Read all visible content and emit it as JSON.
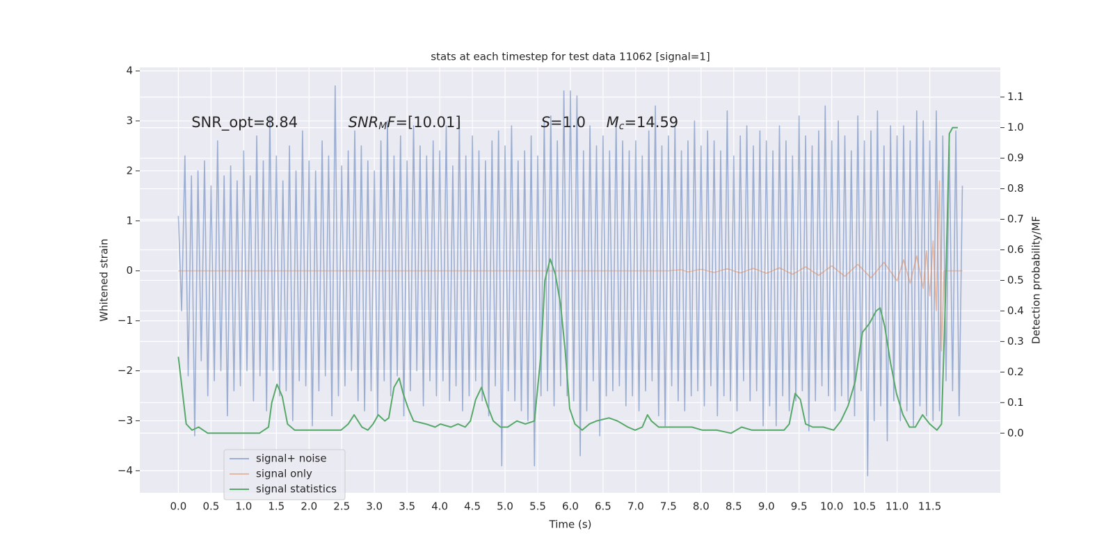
{
  "chart_data": {
    "type": "line",
    "title": "stats at each timestep for test data 11062 [signal=1]",
    "xlabel": "Time (s)",
    "ylabel": "Whitened strain",
    "y2label": "Detection probability/MF",
    "annotations": [
      {
        "parts": [
          {
            "text": "SNR_opt=8.84"
          }
        ]
      },
      {
        "parts": [
          {
            "text": "SNR",
            "style": "italic"
          },
          {
            "text": "M",
            "style": "sub"
          },
          {
            "text": "F",
            "style": "italic"
          },
          {
            "text": "=[10.01]"
          }
        ]
      },
      {
        "parts": [
          {
            "text": "S",
            "style": "italic"
          },
          {
            "text": "=1.0"
          }
        ]
      },
      {
        "parts": [
          {
            "text": "M",
            "style": "italic"
          },
          {
            "text": "c",
            "style": "sub"
          },
          {
            "text": "=14.59"
          }
        ]
      }
    ],
    "xlim": [
      -0.59,
      12.58
    ],
    "ylim": [
      -4.44,
      4.07
    ],
    "y2lim": [
      -0.195,
      1.197
    ],
    "xticks": [
      {
        "value": 0,
        "label": "0.0"
      },
      0.5,
      {
        "value": 1,
        "label": "1.0"
      },
      1.5,
      {
        "value": 2,
        "label": "2.0"
      },
      2.5,
      {
        "value": 3,
        "label": "3.0"
      },
      3.5,
      {
        "value": 4,
        "label": "4.0"
      },
      4.5,
      {
        "value": 5,
        "label": "5.0"
      },
      5.5,
      {
        "value": 6,
        "label": "6.0"
      },
      6.5,
      {
        "value": 7,
        "label": "7.0"
      },
      7.5,
      {
        "value": 8,
        "label": "8.0"
      },
      8.5,
      {
        "value": 9,
        "label": "9.0"
      },
      9.5,
      {
        "value": 10,
        "label": "10.0"
      },
      10.5,
      {
        "value": 11,
        "label": "11.0"
      },
      11.5
    ],
    "yticks": [
      {
        "value": -4,
        "label": "−4"
      },
      {
        "value": -3,
        "label": "−3"
      },
      {
        "value": -2,
        "label": "−2"
      },
      {
        "value": -1,
        "label": "−1"
      },
      0,
      1,
      2,
      3,
      4
    ],
    "y2ticks": [
      {
        "value": 0,
        "label": "0.0"
      },
      0.1,
      0.2,
      0.3,
      0.4,
      0.5,
      0.6,
      0.7,
      0.8,
      0.9,
      {
        "value": 1,
        "label": "1.0"
      },
      1.1
    ],
    "grid": true,
    "legend": "lower left",
    "series": [
      {
        "name": "signal+ noise",
        "color": "#4c72b0",
        "opacity": 0.5,
        "x": [
          0,
          0.05,
          0.1,
          0.15,
          0.2,
          0.25,
          0.3,
          0.35,
          0.4,
          0.45,
          0.5,
          0.55,
          0.6,
          0.65,
          0.7,
          0.75,
          0.8,
          0.85,
          0.9,
          0.95,
          1,
          1.05,
          1.1,
          1.15,
          1.2,
          1.25,
          1.3,
          1.35,
          1.4,
          1.45,
          1.5,
          1.55,
          1.6,
          1.65,
          1.7,
          1.75,
          1.8,
          1.85,
          1.9,
          1.95,
          2,
          2.05,
          2.1,
          2.15,
          2.2,
          2.25,
          2.3,
          2.35,
          2.4,
          2.45,
          2.5,
          2.55,
          2.6,
          2.65,
          2.7,
          2.75,
          2.8,
          2.85,
          2.9,
          2.95,
          3,
          3.05,
          3.1,
          3.15,
          3.2,
          3.25,
          3.3,
          3.35,
          3.4,
          3.45,
          3.5,
          3.55,
          3.6,
          3.65,
          3.7,
          3.75,
          3.8,
          3.85,
          3.9,
          3.95,
          4,
          4.05,
          4.1,
          4.15,
          4.2,
          4.25,
          4.3,
          4.35,
          4.4,
          4.45,
          4.5,
          4.55,
          4.6,
          4.65,
          4.7,
          4.75,
          4.8,
          4.85,
          4.9,
          4.95,
          5,
          5.05,
          5.1,
          5.15,
          5.2,
          5.25,
          5.3,
          5.35,
          5.4,
          5.45,
          5.5,
          5.55,
          5.6,
          5.65,
          5.7,
          5.75,
          5.8,
          5.85,
          5.9,
          5.95,
          6,
          6.05,
          6.1,
          6.15,
          6.2,
          6.25,
          6.3,
          6.35,
          6.4,
          6.45,
          6.5,
          6.55,
          6.6,
          6.65,
          6.7,
          6.75,
          6.8,
          6.85,
          6.9,
          6.95,
          7,
          7.05,
          7.1,
          7.15,
          7.2,
          7.25,
          7.3,
          7.35,
          7.4,
          7.45,
          7.5,
          7.55,
          7.6,
          7.65,
          7.7,
          7.75,
          7.8,
          7.85,
          7.9,
          7.95,
          8,
          8.05,
          8.1,
          8.15,
          8.2,
          8.25,
          8.3,
          8.35,
          8.4,
          8.45,
          8.5,
          8.55,
          8.6,
          8.65,
          8.7,
          8.75,
          8.8,
          8.85,
          8.9,
          8.95,
          9,
          9.05,
          9.1,
          9.15,
          9.2,
          9.25,
          9.3,
          9.35,
          9.4,
          9.45,
          9.5,
          9.55,
          9.6,
          9.65,
          9.7,
          9.75,
          9.8,
          9.85,
          9.9,
          9.95,
          10,
          10.05,
          10.1,
          10.15,
          10.2,
          10.25,
          10.3,
          10.35,
          10.4,
          10.45,
          10.5,
          10.55,
          10.6,
          10.65,
          10.7,
          10.75,
          10.8,
          10.85,
          10.9,
          10.95,
          11,
          11.05,
          11.1,
          11.15,
          11.2,
          11.25,
          11.3,
          11.35,
          11.4,
          11.45,
          11.5,
          11.55,
          11.6,
          11.65,
          11.7,
          11.75,
          11.8,
          11.85,
          11.9,
          11.95,
          12
        ],
        "values": [
          1.1,
          -0.8,
          2.3,
          -2.1,
          1.9,
          -3.3,
          2.0,
          -1.8,
          2.2,
          -2.5,
          1.7,
          -2.2,
          2.6,
          -2.0,
          1.9,
          -2.9,
          2.1,
          -2.4,
          1.8,
          -2.3,
          2.4,
          -2.0,
          1.9,
          -2.6,
          2.7,
          -2.1,
          2.2,
          -2.8,
          3.1,
          -2.0,
          2.3,
          -2.5,
          1.8,
          -2.4,
          2.5,
          -3.0,
          2.0,
          -2.2,
          2.8,
          -2.3,
          2.2,
          -3.1,
          2.0,
          -2.4,
          2.6,
          -2.1,
          2.3,
          -2.9,
          3.7,
          -2.5,
          2.1,
          -2.3,
          2.4,
          -2.0,
          2.8,
          -2.6,
          2.5,
          -2.8,
          2.2,
          -2.4,
          2.0,
          -2.9,
          2.6,
          -2.2,
          3.0,
          -2.5,
          2.3,
          -2.1,
          2.7,
          -2.9,
          2.2,
          -2.4,
          2.9,
          -2.0,
          2.5,
          -2.7,
          2.3,
          -2.2,
          2.6,
          -2.5,
          2.4,
          -2.2,
          2.9,
          -2.6,
          2.1,
          -2.3,
          3.0,
          -2.8,
          2.3,
          -2.5,
          2.7,
          -2.2,
          2.4,
          -2.6,
          2.2,
          -2.9,
          2.6,
          -2.3,
          2.8,
          -3.9,
          2.5,
          -2.4,
          2.9,
          -2.6,
          2.2,
          -2.8,
          2.4,
          -3.0,
          2.7,
          -3.9,
          2.3,
          -2.5,
          3.0,
          -2.4,
          3.1,
          -2.7,
          2.6,
          -2.3,
          3.6,
          -2.5,
          3.6,
          -2.6,
          3.5,
          -3.7,
          2.4,
          -2.8,
          2.9,
          -2.2,
          2.5,
          -3.3,
          2.7,
          -2.5,
          2.4,
          -2.4,
          3.0,
          -2.3,
          2.6,
          -2.7,
          2.4,
          -2.5,
          2.6,
          -2.8,
          2.3,
          -2.4,
          2.8,
          -2.2,
          3.3,
          -2.9,
          2.5,
          -3.1,
          2.7,
          -2.3,
          2.9,
          -2.6,
          2.4,
          -2.8,
          2.6,
          -2.5,
          3.0,
          -2.4,
          2.5,
          -2.7,
          2.8,
          -2.3,
          2.6,
          -2.9,
          2.4,
          -2.5,
          3.2,
          -2.6,
          2.3,
          -2.8,
          2.7,
          -2.2,
          2.9,
          -2.6,
          2.5,
          -2.4,
          2.8,
          -3.1,
          2.6,
          -2.7,
          2.4,
          -3.1,
          2.9,
          -2.5,
          2.6,
          -2.8,
          2.3,
          -2.6,
          3.1,
          -2.4,
          2.7,
          -3.2,
          2.5,
          -2.6,
          2.8,
          -2.3,
          3.3,
          -2.5,
          2.6,
          -2.8,
          3.0,
          -2.5,
          2.7,
          -2.6,
          2.4,
          -2.9,
          3.1,
          -2.4,
          2.6,
          -4.1,
          2.8,
          -3.0,
          3.2,
          -2.7,
          2.5,
          -3.4,
          2.9,
          -2.6,
          2.7,
          -3.0,
          2.9,
          -2.8,
          2.6,
          -3.1,
          3.2,
          -2.7,
          3.0,
          -2.9,
          2.6,
          -3.0,
          3.2,
          -2.8,
          2.7,
          -2.2,
          2.5,
          -2.4,
          2.8,
          -2.9,
          1.7
        ]
      },
      {
        "name": "signal only",
        "color": "#dd8452",
        "opacity": 0.5,
        "x": [
          0,
          7.5,
          7.7,
          7.8,
          8.0,
          8.2,
          8.4,
          8.6,
          8.8,
          9.0,
          9.2,
          9.4,
          9.6,
          9.8,
          10.0,
          10.2,
          10.4,
          10.6,
          10.8,
          11.0,
          11.1,
          11.2,
          11.3,
          11.4,
          11.45,
          11.5,
          11.55,
          11.6,
          11.63,
          11.65,
          11.68,
          11.72,
          12.0
        ],
        "values": [
          0,
          0,
          0.02,
          -0.02,
          0.03,
          -0.03,
          0.04,
          -0.04,
          0.05,
          -0.05,
          0.06,
          -0.07,
          0.08,
          -0.09,
          0.1,
          -0.11,
          0.13,
          -0.14,
          0.17,
          -0.2,
          0.22,
          -0.25,
          0.3,
          -0.35,
          0.4,
          -0.5,
          0.6,
          -0.8,
          1.0,
          1.8,
          -1.6,
          0,
          0
        ]
      },
      {
        "name": "signal statistics",
        "color": "#55a868",
        "opacity": 1,
        "axis": "y2",
        "x": [
          0,
          0.12,
          0.21,
          0.31,
          0.45,
          0.64,
          0.86,
          1.02,
          1.24,
          1.38,
          1.43,
          1.51,
          1.59,
          1.67,
          1.78,
          2.0,
          2.27,
          2.49,
          2.6,
          2.69,
          2.81,
          2.9,
          2.98,
          3.06,
          3.16,
          3.22,
          3.3,
          3.38,
          3.44,
          3.52,
          3.6,
          3.79,
          3.93,
          4.01,
          4.17,
          4.28,
          4.39,
          4.47,
          4.55,
          4.64,
          4.73,
          4.82,
          4.93,
          5.04,
          5.18,
          5.31,
          5.45,
          5.55,
          5.61,
          5.69,
          5.77,
          5.85,
          5.92,
          5.99,
          6.07,
          6.18,
          6.29,
          6.4,
          6.59,
          6.72,
          6.88,
          6.99,
          7.1,
          7.18,
          7.24,
          7.35,
          7.54,
          7.7,
          7.86,
          8.02,
          8.24,
          8.46,
          8.62,
          8.78,
          9.11,
          9.27,
          9.35,
          9.44,
          9.52,
          9.6,
          9.71,
          9.87,
          10.03,
          10.14,
          10.25,
          10.36,
          10.47,
          10.58,
          10.68,
          10.74,
          10.81,
          10.9,
          10.99,
          11.09,
          11.19,
          11.28,
          11.39,
          11.5,
          11.61,
          11.68,
          11.74,
          11.8,
          11.85,
          11.93
        ],
        "values": [
          0.25,
          0.03,
          0.01,
          0.02,
          0.0,
          0.0,
          0.0,
          0.0,
          0.0,
          0.02,
          0.1,
          0.16,
          0.12,
          0.03,
          0.01,
          0.01,
          0.01,
          0.01,
          0.03,
          0.06,
          0.02,
          0.01,
          0.03,
          0.06,
          0.04,
          0.05,
          0.15,
          0.18,
          0.13,
          0.08,
          0.04,
          0.03,
          0.02,
          0.03,
          0.02,
          0.03,
          0.02,
          0.04,
          0.11,
          0.15,
          0.09,
          0.04,
          0.02,
          0.02,
          0.04,
          0.03,
          0.04,
          0.26,
          0.5,
          0.57,
          0.52,
          0.42,
          0.27,
          0.08,
          0.03,
          0.01,
          0.03,
          0.04,
          0.05,
          0.04,
          0.02,
          0.01,
          0.02,
          0.06,
          0.04,
          0.02,
          0.02,
          0.02,
          0.02,
          0.01,
          0.01,
          0.0,
          0.02,
          0.01,
          0.01,
          0.01,
          0.03,
          0.13,
          0.11,
          0.03,
          0.02,
          0.02,
          0.01,
          0.04,
          0.09,
          0.17,
          0.33,
          0.36,
          0.4,
          0.41,
          0.35,
          0.23,
          0.13,
          0.06,
          0.02,
          0.02,
          0.06,
          0.03,
          0.01,
          0.03,
          0.44,
          0.98,
          1.0,
          1.0
        ]
      }
    ]
  }
}
